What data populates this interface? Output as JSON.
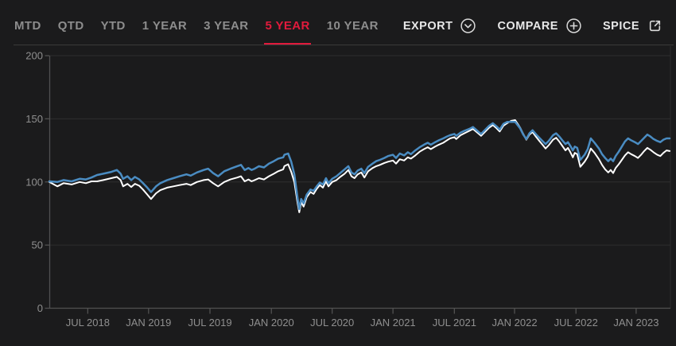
{
  "header": {
    "tabs": [
      {
        "label": "MTD",
        "active": false
      },
      {
        "label": "QTD",
        "active": false
      },
      {
        "label": "YTD",
        "active": false
      },
      {
        "label": "1 YEAR",
        "active": false
      },
      {
        "label": "3 YEAR",
        "active": false
      },
      {
        "label": "5 YEAR",
        "active": true
      },
      {
        "label": "10 YEAR",
        "active": false
      }
    ],
    "actions": [
      {
        "label": "EXPORT",
        "icon": "chevron-down-circle-icon"
      },
      {
        "label": "COMPARE",
        "icon": "plus-circle-icon"
      },
      {
        "label": "SPICE",
        "icon": "external-link-icon"
      }
    ]
  },
  "colors": {
    "background": "#1b1b1c",
    "active_tab_red": "#e11a3c",
    "inactive_tab_gray": "#8d8d8d",
    "action_text": "#e8e8e8",
    "axis_label_gray": "#8f8f8f",
    "gridline": "#2e2e2e",
    "axis_line": "#515151",
    "series_white": "#ffffff",
    "series_blue": "#4a8cc2"
  },
  "chart_data": {
    "type": "line",
    "title": "",
    "xlabel": "",
    "ylabel": "",
    "ylim": [
      0,
      200
    ],
    "y_ticks": [
      0,
      50,
      100,
      150,
      200
    ],
    "x_tick_labels": [
      "JUL 2018",
      "JAN 2019",
      "JUL 2019",
      "JAN 2020",
      "JUL 2020",
      "JAN 2021",
      "JUL 2021",
      "JAN 2022",
      "JUL 2022",
      "JAN 2023"
    ],
    "x_tick_positions_pct": [
      6.2,
      16.0,
      25.9,
      35.8,
      45.6,
      55.4,
      65.3,
      75.0,
      84.9,
      94.6
    ],
    "grid": "horizontal",
    "legend": "none",
    "series": [
      {
        "name": "white-series",
        "color": "#ffffff"
      },
      {
        "name": "blue-series",
        "color": "#4a8cc2"
      }
    ],
    "point_format": "[x_percent_across_time_axis, white_series_value, blue_series_value]",
    "points": [
      [
        0,
        100,
        100.5
      ],
      [
        1.3,
        96.5,
        100
      ],
      [
        2.3,
        99,
        101.5
      ],
      [
        3.6,
        98,
        100.5
      ],
      [
        4.9,
        100,
        102.5
      ],
      [
        5.9,
        99,
        102
      ],
      [
        6.8,
        100.5,
        103.5
      ],
      [
        7.7,
        100.5,
        105.5
      ],
      [
        8.7,
        101.5,
        106.5
      ],
      [
        10,
        103,
        108
      ],
      [
        10.9,
        104,
        109.5
      ],
      [
        11.5,
        101.5,
        106.5
      ],
      [
        11.9,
        96.5,
        102.5
      ],
      [
        12.6,
        98.5,
        104.5
      ],
      [
        13.2,
        96,
        101.5
      ],
      [
        13.8,
        98.5,
        104
      ],
      [
        14.5,
        97,
        102
      ],
      [
        15.1,
        94,
        99
      ],
      [
        15.8,
        90,
        95.5
      ],
      [
        16.4,
        86.5,
        92
      ],
      [
        17.2,
        91,
        96.5
      ],
      [
        17.9,
        93.5,
        99
      ],
      [
        19,
        95.5,
        101.5
      ],
      [
        20,
        96.5,
        103
      ],
      [
        21,
        97.5,
        104.5
      ],
      [
        22.1,
        98.5,
        106
      ],
      [
        22.8,
        97.5,
        105
      ],
      [
        23.8,
        100,
        107.5
      ],
      [
        24.9,
        101.5,
        109.5
      ],
      [
        25.6,
        102,
        110.5
      ],
      [
        26.4,
        99,
        107
      ],
      [
        27.2,
        96.5,
        104.5
      ],
      [
        28.2,
        100,
        108.5
      ],
      [
        29.2,
        102,
        110.5
      ],
      [
        30.3,
        103.5,
        112.5
      ],
      [
        30.9,
        104.5,
        113.5
      ],
      [
        31.5,
        100.5,
        109.5
      ],
      [
        32.1,
        102,
        111
      ],
      [
        32.6,
        100.5,
        109.5
      ],
      [
        33.1,
        101.5,
        110.5
      ],
      [
        33.8,
        103,
        112.5
      ],
      [
        34.6,
        102,
        111.5
      ],
      [
        35.4,
        104.5,
        114.5
      ],
      [
        36.2,
        106.5,
        116.5
      ],
      [
        36.9,
        108.5,
        118.5
      ],
      [
        37.7,
        110,
        119.5
      ],
      [
        37.9,
        112.5,
        121.5
      ],
      [
        38.5,
        114,
        122.5
      ],
      [
        39,
        108,
        116
      ],
      [
        39.5,
        100,
        106
      ],
      [
        40,
        84,
        88
      ],
      [
        40.3,
        76,
        78.5
      ],
      [
        40.6,
        84,
        86.5
      ],
      [
        41,
        80.5,
        83
      ],
      [
        41.5,
        88,
        90
      ],
      [
        42.1,
        92,
        94
      ],
      [
        42.6,
        90.5,
        93
      ],
      [
        43.1,
        94.5,
        96.5
      ],
      [
        43.6,
        97.5,
        99.5
      ],
      [
        44.1,
        95.5,
        98
      ],
      [
        44.6,
        100.5,
        103
      ],
      [
        45,
        96.5,
        99
      ],
      [
        45.6,
        100,
        102.5
      ],
      [
        46.3,
        101.5,
        104.5
      ],
      [
        46.9,
        104,
        107
      ],
      [
        47.6,
        106.5,
        110
      ],
      [
        48.2,
        109.5,
        112.5
      ],
      [
        48.7,
        104.5,
        107.5
      ],
      [
        49.2,
        103,
        106
      ],
      [
        49.7,
        106,
        109
      ],
      [
        50.3,
        107.5,
        110.5
      ],
      [
        50.8,
        103.5,
        107
      ],
      [
        51.4,
        108.5,
        112
      ],
      [
        52.1,
        111,
        114.5
      ],
      [
        52.7,
        112.5,
        116.5
      ],
      [
        53.3,
        113.5,
        117.5
      ],
      [
        54,
        115,
        119
      ],
      [
        54.6,
        116,
        120.5
      ],
      [
        55.4,
        117,
        121.5
      ],
      [
        55.9,
        114.5,
        119
      ],
      [
        56.5,
        118,
        122.5
      ],
      [
        57.2,
        117,
        121
      ],
      [
        57.8,
        119.5,
        123.5
      ],
      [
        58.3,
        118.5,
        122
      ],
      [
        59,
        121,
        125
      ],
      [
        59.7,
        124,
        127.5
      ],
      [
        60.4,
        126,
        129.5
      ],
      [
        61,
        127.5,
        131
      ],
      [
        61.5,
        126,
        129.5
      ],
      [
        62.2,
        128,
        131.5
      ],
      [
        62.8,
        129.5,
        133
      ],
      [
        63.5,
        131,
        134.5
      ],
      [
        64.1,
        133,
        136
      ],
      [
        64.6,
        134.5,
        137
      ],
      [
        65.3,
        135.5,
        138
      ],
      [
        65.6,
        134,
        136.5
      ],
      [
        66.3,
        137,
        139
      ],
      [
        66.9,
        138.5,
        140.5
      ],
      [
        67.7,
        140.5,
        142
      ],
      [
        68.3,
        142,
        143.5
      ],
      [
        69,
        139,
        140.5
      ],
      [
        69.6,
        136.5,
        138
      ],
      [
        70.3,
        140,
        141.5
      ],
      [
        70.9,
        143,
        144.5
      ],
      [
        71.5,
        145,
        146.5
      ],
      [
        72.1,
        142.5,
        144
      ],
      [
        72.6,
        140,
        141.5
      ],
      [
        73.2,
        144.5,
        146
      ],
      [
        73.8,
        146.5,
        147.5
      ],
      [
        74.5,
        148.5,
        147.5
      ],
      [
        75.1,
        149,
        147.5
      ],
      [
        75.5,
        146,
        145
      ],
      [
        75.9,
        143,
        142.5
      ],
      [
        76.4,
        138,
        137.5
      ],
      [
        76.9,
        133.5,
        134
      ],
      [
        77.4,
        137.5,
        138.5
      ],
      [
        77.9,
        139.5,
        141
      ],
      [
        78.5,
        135.5,
        137.5
      ],
      [
        79,
        132.5,
        135
      ],
      [
        79.5,
        129.5,
        132.5
      ],
      [
        80,
        126.5,
        130
      ],
      [
        80.5,
        129,
        132.5
      ],
      [
        81.2,
        133.5,
        137
      ],
      [
        81.7,
        135,
        138.5
      ],
      [
        82.2,
        132,
        136
      ],
      [
        82.7,
        128.5,
        133
      ],
      [
        83.2,
        125,
        130
      ],
      [
        83.6,
        127,
        131.5
      ],
      [
        84,
        123.5,
        128.5
      ],
      [
        84.4,
        119.5,
        125
      ],
      [
        84.7,
        123,
        128
      ],
      [
        85.1,
        122,
        127
      ],
      [
        85.6,
        112,
        117.5
      ],
      [
        86.3,
        116,
        121.5
      ],
      [
        86.8,
        120,
        126
      ],
      [
        87.3,
        126.5,
        134.5
      ],
      [
        87.9,
        123,
        131
      ],
      [
        88.6,
        118,
        126.5
      ],
      [
        89.1,
        113.5,
        122
      ],
      [
        89.6,
        110,
        119
      ],
      [
        90.1,
        107.5,
        116.5
      ],
      [
        90.5,
        109.5,
        118.5
      ],
      [
        90.9,
        107,
        116.5
      ],
      [
        91.3,
        111,
        120.5
      ],
      [
        91.8,
        114,
        124
      ],
      [
        92.3,
        117.5,
        128
      ],
      [
        92.8,
        121,
        132
      ],
      [
        93.3,
        123.5,
        134.5
      ],
      [
        93.8,
        122,
        133
      ],
      [
        94.4,
        120.5,
        131.5
      ],
      [
        94.9,
        119,
        130
      ],
      [
        95.4,
        121.5,
        132.5
      ],
      [
        95.9,
        124.5,
        135
      ],
      [
        96.4,
        127,
        137.5
      ],
      [
        96.9,
        125.5,
        136
      ],
      [
        97.4,
        123.5,
        134
      ],
      [
        98,
        121.5,
        132.5
      ],
      [
        98.5,
        120.5,
        131.5
      ],
      [
        99,
        123,
        133.5
      ],
      [
        99.5,
        125,
        134.5
      ],
      [
        100,
        124.5,
        134.5
      ]
    ]
  }
}
